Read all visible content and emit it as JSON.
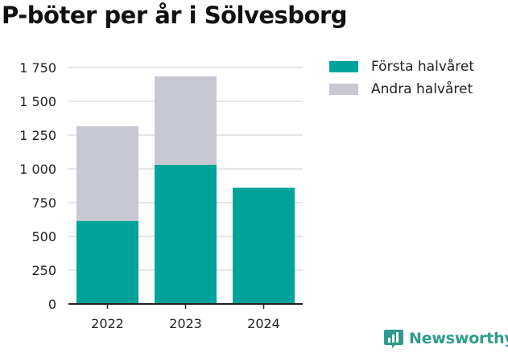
{
  "title": "P-böter per år i Sölvesborg",
  "brand": {
    "name": "Newsworthy",
    "icon": "newsworthy-logo-icon"
  },
  "colors": {
    "first_half": "#00a399",
    "second_half": "#c8c8d2",
    "grid": "#dddddd",
    "axis": "#222222",
    "brand": "#2e9c8c"
  },
  "chart_data": {
    "type": "bar",
    "stacked": true,
    "title": "P-böter per år i Sölvesborg",
    "xlabel": "",
    "ylabel": "",
    "categories": [
      "2022",
      "2023",
      "2024"
    ],
    "series": [
      {
        "name": "Första halvåret",
        "values": [
          615,
          1030,
          860
        ]
      },
      {
        "name": "Andra halvåret",
        "values": [
          700,
          655,
          0
        ]
      }
    ],
    "ylim": [
      0,
      1750
    ],
    "yticks": [
      0,
      250,
      500,
      750,
      1000,
      1250,
      1500,
      1750
    ],
    "ytick_labels": [
      "0",
      "250",
      "500",
      "750",
      "1 000",
      "1 250",
      "1 500",
      "1 750"
    ],
    "grid": true,
    "legend_position": "right"
  }
}
